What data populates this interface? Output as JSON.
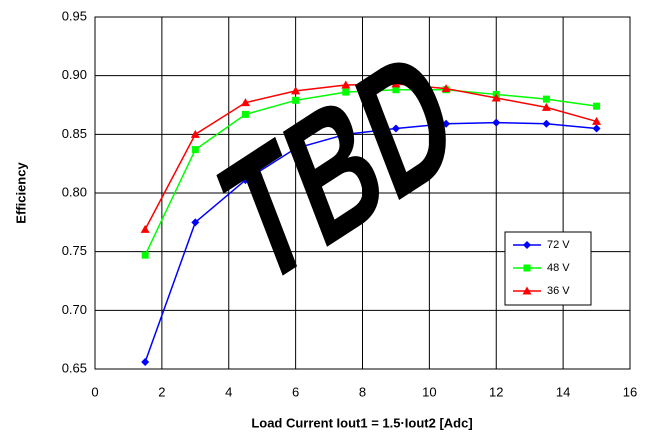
{
  "chart_data": {
    "type": "line",
    "xlabel": "Load Current Iout1 = 1.5·Iout2 [Adc]",
    "ylabel": "Efficiency",
    "watermark": "TBD",
    "x": [
      1.5,
      3,
      4.5,
      6,
      7.5,
      9,
      10.5,
      12,
      13.5,
      15
    ],
    "series": [
      {
        "name": "72 V",
        "color": "#0000ff",
        "marker": "diamond",
        "values": [
          0.656,
          0.775,
          0.811,
          0.838,
          0.85,
          0.855,
          0.859,
          0.86,
          0.859,
          0.855
        ]
      },
      {
        "name": "48 V",
        "color": "#00ff00",
        "marker": "square",
        "values": [
          0.747,
          0.837,
          0.867,
          0.879,
          0.886,
          0.888,
          0.888,
          0.884,
          0.88,
          0.874
        ]
      },
      {
        "name": "36 V",
        "color": "#ff0000",
        "marker": "triangle",
        "values": [
          0.769,
          0.85,
          0.877,
          0.887,
          0.892,
          0.893,
          0.889,
          0.881,
          0.873,
          0.861
        ]
      }
    ],
    "xlim": [
      0,
      16
    ],
    "xticks": [
      0,
      2,
      4,
      6,
      8,
      10,
      12,
      14,
      16
    ],
    "ylim": [
      0.65,
      0.95
    ],
    "yticks": [
      0.65,
      {
        "value": 0.7,
        "label": "0.70"
      },
      0.75,
      {
        "value": 0.8,
        "label": "0.80"
      },
      0.85,
      {
        "value": 0.9,
        "label": "0.90"
      },
      0.95
    ],
    "grid": true,
    "legend": "lower-right"
  }
}
